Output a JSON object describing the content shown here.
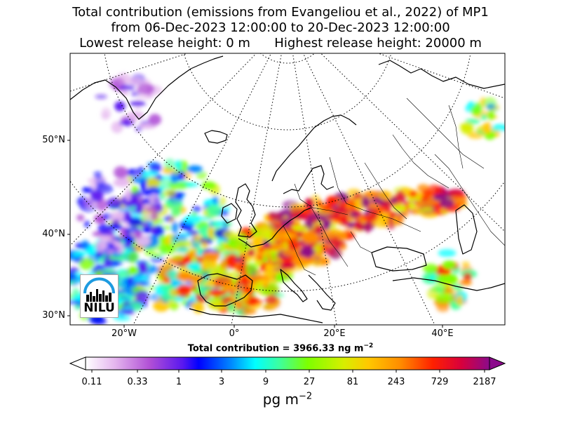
{
  "title": {
    "line1": "Total contribution (emissions from Evangeliou et al., 2022) of MP1",
    "line2": "from 06-Dec-2023 12:00:00 to 20-Dec-2023 12:00:00",
    "line3": "Lowest release height: 0 m      Highest release height: 20000 m"
  },
  "map": {
    "lat_labels": [
      "50°N",
      "40°N",
      "30°N"
    ],
    "lon_labels": [
      "20°W",
      "0°",
      "20°E",
      "40°E"
    ],
    "logo_text": "NILU",
    "total_label": "Total contribution = 3966.33 ng m",
    "total_exponent": "−2"
  },
  "colorbar": {
    "ticks": [
      "0.11",
      "0.33",
      "1",
      "3",
      "9",
      "27",
      "81",
      "243",
      "729",
      "2187"
    ],
    "unit_base": "pg m",
    "unit_exponent": "−2",
    "colors": [
      "#ffffff",
      "#e6b8ef",
      "#b04fd6",
      "#5a18f0",
      "#0000ff",
      "#0088ff",
      "#00ffff",
      "#3dff9e",
      "#7dff00",
      "#d8ee00",
      "#ffc800",
      "#ff8c00",
      "#ff2000",
      "#d8003c",
      "#8b0a8b"
    ]
  }
}
